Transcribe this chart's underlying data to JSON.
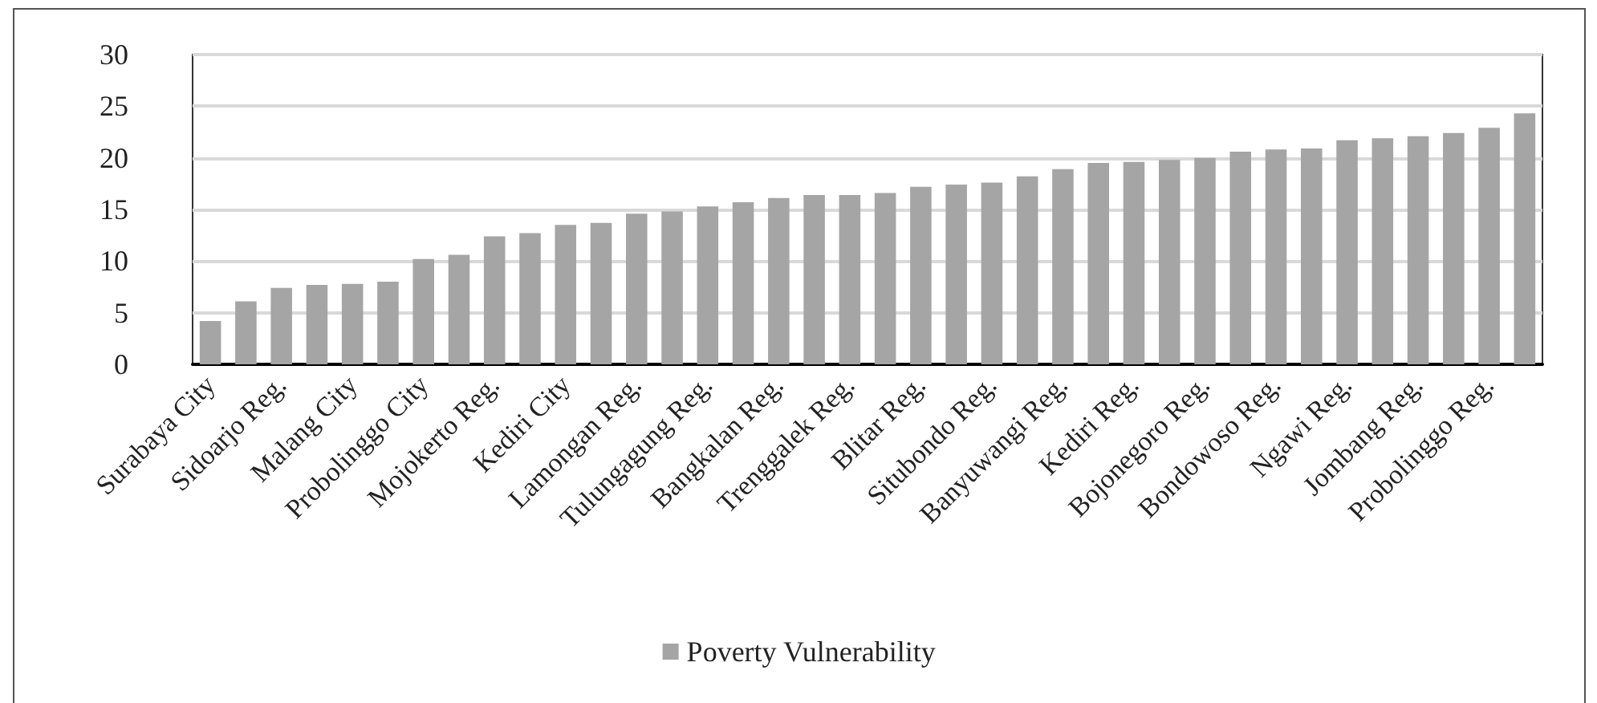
{
  "chart_data": {
    "type": "bar",
    "categories": [
      "Surabaya City",
      null,
      "Sidoarjo Reg.",
      null,
      "Malang City",
      null,
      "Probolinggo City",
      null,
      "Mojokerto Reg.",
      null,
      "Kediri City",
      null,
      "Lamongan Reg.",
      null,
      "Tulungagung Reg.",
      null,
      "Bangkalan Reg.",
      null,
      "Trenggalek Reg.",
      null,
      "Blitar Reg.",
      null,
      "Situbondo Reg.",
      null,
      "Banyuwangi Reg.",
      null,
      "Kediri Reg.",
      null,
      "Bojonegoro Reg.",
      null,
      "Bondowoso Reg.",
      null,
      "Ngawi Reg.",
      null,
      "Jombang Reg.",
      null,
      "Probolinggo Reg.",
      null
    ],
    "series": [
      {
        "name": "Poverty Vulnerability",
        "color": "#a5a5a5",
        "values": [
          4.2,
          6.1,
          7.4,
          7.7,
          7.8,
          8.0,
          10.2,
          10.6,
          12.4,
          12.7,
          13.5,
          13.7,
          14.6,
          14.8,
          15.3,
          15.7,
          16.1,
          16.4,
          16.4,
          16.6,
          17.2,
          17.4,
          17.6,
          18.2,
          18.9,
          19.5,
          19.6,
          19.8,
          20.0,
          20.6,
          20.8,
          20.9,
          21.7,
          21.9,
          22.1,
          22.4,
          22.9,
          24.3
        ]
      }
    ],
    "ylim": [
      0,
      30
    ],
    "yticks": [
      0,
      5,
      10,
      15,
      20,
      25,
      30
    ],
    "grid": "y",
    "legend": "bottom"
  }
}
